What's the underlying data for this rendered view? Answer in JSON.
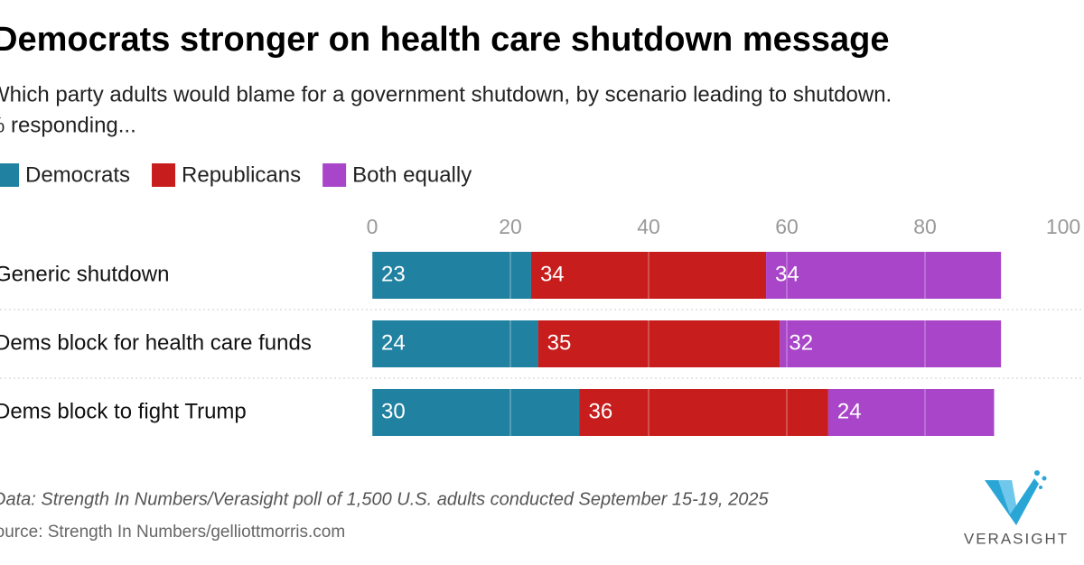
{
  "chart_data": {
    "type": "stacked-bar-horizontal",
    "title": "Democrats stronger on health care shutdown message",
    "subtitle": "Which party adults would blame for a government shutdown, by scenario leading to shutdown.",
    "subtitle2": "% responding...",
    "categories": [
      "Generic shutdown",
      "Dems block for health care funds",
      "Dems block to fight Trump"
    ],
    "series": [
      {
        "name": "Democrats",
        "color": "#2181a1",
        "values": [
          23,
          24,
          30
        ]
      },
      {
        "name": "Republicans",
        "color": "#c71e1d",
        "values": [
          34,
          35,
          36
        ]
      },
      {
        "name": "Both equally",
        "color": "#a945c8",
        "values": [
          34,
          32,
          24
        ]
      }
    ],
    "xlim": [
      0,
      100
    ],
    "xticks": [
      0,
      20,
      40,
      60,
      80,
      100
    ],
    "grid": true,
    "note": "Data: Strength In Numbers/Verasight poll of 1,500 U.S. adults conducted September 15-19, 2025",
    "source": "Source: Strength In Numbers/gelliottmorris.com",
    "logo": "VERASIGHT"
  }
}
